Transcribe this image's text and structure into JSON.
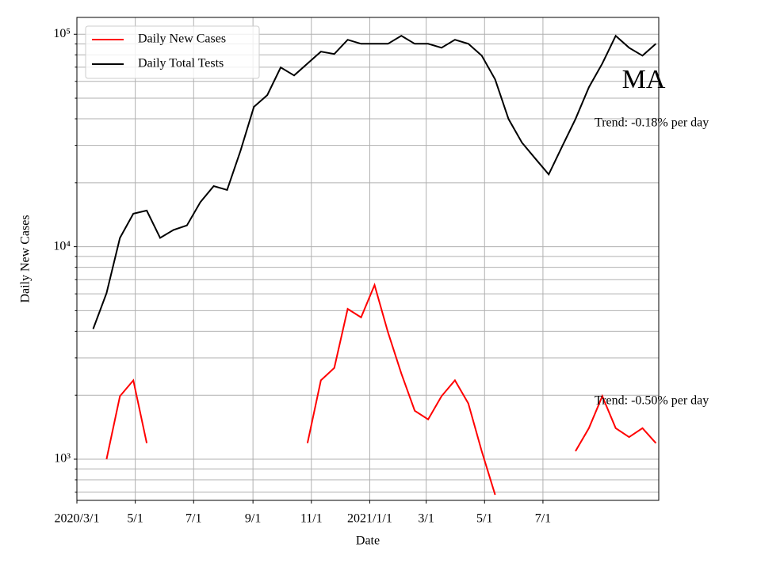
{
  "chart_data": {
    "type": "line",
    "title": "MA",
    "xlabel": "Date",
    "ylabel": "Daily New Cases",
    "annotations": [
      "Trend: -0.18% per day",
      "Trend: -0.50% per day"
    ],
    "x": [
      "2020-03-18",
      "2020-04-01",
      "2020-04-15",
      "2020-04-29",
      "2020-05-13",
      "2020-05-27",
      "2020-06-10",
      "2020-06-24",
      "2020-07-08",
      "2020-07-22",
      "2020-08-05",
      "2020-08-19",
      "2020-09-02",
      "2020-09-16",
      "2020-09-30",
      "2020-10-14",
      "2020-10-28",
      "2020-11-11",
      "2020-11-25",
      "2020-12-09",
      "2020-12-23",
      "2021-01-06",
      "2021-01-20",
      "2021-02-03",
      "2021-02-17",
      "2021-03-03",
      "2021-03-17",
      "2021-03-31",
      "2021-04-14",
      "2021-04-28",
      "2021-05-12",
      "2021-05-26",
      "2021-06-09",
      "2021-06-23",
      "2021-07-07",
      "2021-07-21",
      "2021-08-04",
      "2021-08-18",
      "2021-09-01",
      "2021-09-15",
      "2021-09-29",
      "2021-10-13",
      "2021-10-27"
    ],
    "series": [
      {
        "name": "Daily New Cases",
        "color": "#ff0000",
        "values": [
          null,
          1000,
          1980,
          2350,
          1190,
          null,
          null,
          null,
          null,
          null,
          null,
          null,
          null,
          null,
          null,
          null,
          1190,
          2350,
          2690,
          5100,
          4650,
          6600,
          3960,
          2530,
          1690,
          1540,
          1980,
          2350,
          1830,
          1090,
          680,
          null,
          null,
          null,
          null,
          null,
          1090,
          1400,
          1980,
          1400,
          1270,
          1400,
          1190
        ]
      },
      {
        "name": "Daily Total Tests",
        "color": "#000000",
        "values": [
          4100,
          6050,
          11000,
          14300,
          14800,
          11000,
          12000,
          12600,
          16200,
          19300,
          18500,
          28300,
          45500,
          51700,
          69800,
          64000,
          72800,
          82800,
          80700,
          94200,
          90200,
          90200,
          90200,
          98300,
          90200,
          90200,
          86400,
          94200,
          90200,
          79300,
          61300,
          39900,
          30900,
          26000,
          21900,
          29600,
          39900,
          56300,
          72800,
          98300,
          86400,
          79300,
          90200
        ]
      }
    ],
    "xlim": [
      "2020-03-01",
      "2021-10-30"
    ],
    "xticks": [
      {
        "value": "2020-03-01",
        "label": "2020/3/1"
      },
      {
        "value": "2020-05-01",
        "label": "5/1"
      },
      {
        "value": "2020-07-01",
        "label": "7/1"
      },
      {
        "value": "2020-09-01",
        "label": "9/1"
      },
      {
        "value": "2020-11-01",
        "label": "11/1"
      },
      {
        "value": "2021-01-01",
        "label": "2021/1/1"
      },
      {
        "value": "2021-03-01",
        "label": "3/1"
      },
      {
        "value": "2021-05-01",
        "label": "5/1"
      },
      {
        "value": "2021-07-01",
        "label": "7/1"
      }
    ],
    "ylim": [
      640,
      120000
    ],
    "yscale": "log",
    "yticks": [
      {
        "value": 1000,
        "label": "10³"
      },
      {
        "value": 10000,
        "label": "10⁴"
      },
      {
        "value": 100000,
        "label": "10⁵"
      }
    ],
    "yminorticks": [
      700,
      800,
      900,
      2000,
      3000,
      4000,
      5000,
      6000,
      7000,
      8000,
      9000,
      20000,
      30000,
      40000,
      50000,
      60000,
      70000,
      80000,
      90000
    ],
    "grid": true,
    "legend": "upper left"
  }
}
